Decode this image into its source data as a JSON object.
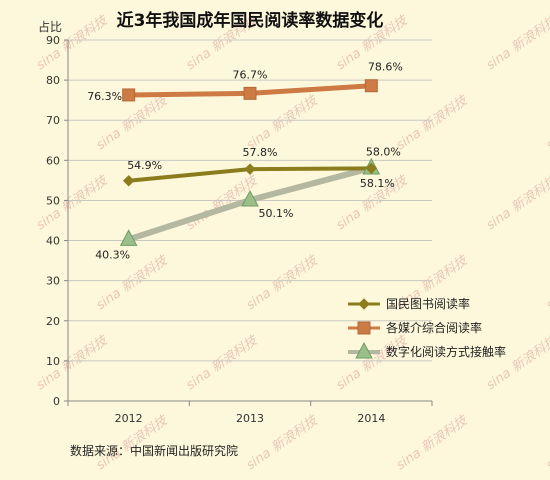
{
  "chart_data": {
    "type": "line",
    "title": "近3年我国成年国民阅读率数据变化",
    "ylabel": "占比",
    "xlabel": "",
    "categories": [
      "2012",
      "2013",
      "2014"
    ],
    "ylim": [
      0,
      90
    ],
    "yticks": [
      0,
      10,
      20,
      30,
      40,
      50,
      60,
      70,
      80,
      90
    ],
    "grid": true,
    "legend_position": "bottom-right",
    "series": [
      {
        "name": "国民图书阅读率",
        "values": [
          54.9,
          57.8,
          58.0
        ],
        "labels": [
          "54.9%",
          "57.8%",
          "58.0%"
        ],
        "color": "#8c7d1c",
        "marker": "diamond"
      },
      {
        "name": "各媒介综合阅读率",
        "values": [
          76.3,
          76.7,
          78.6
        ],
        "labels": [
          "76.3%",
          "76.7%",
          "78.6%"
        ],
        "color": "#cd7a45",
        "marker": "square"
      },
      {
        "name": "数字化阅读方式接触率",
        "values": [
          40.3,
          50.1,
          58.1
        ],
        "labels": [
          "40.3%",
          "50.1%",
          "58.1%"
        ],
        "color": "#b4b8a0",
        "marker": "triangle",
        "marker_color": "#9bbf8a"
      }
    ],
    "source": "数据来源：中国新闻出版研究院"
  }
}
